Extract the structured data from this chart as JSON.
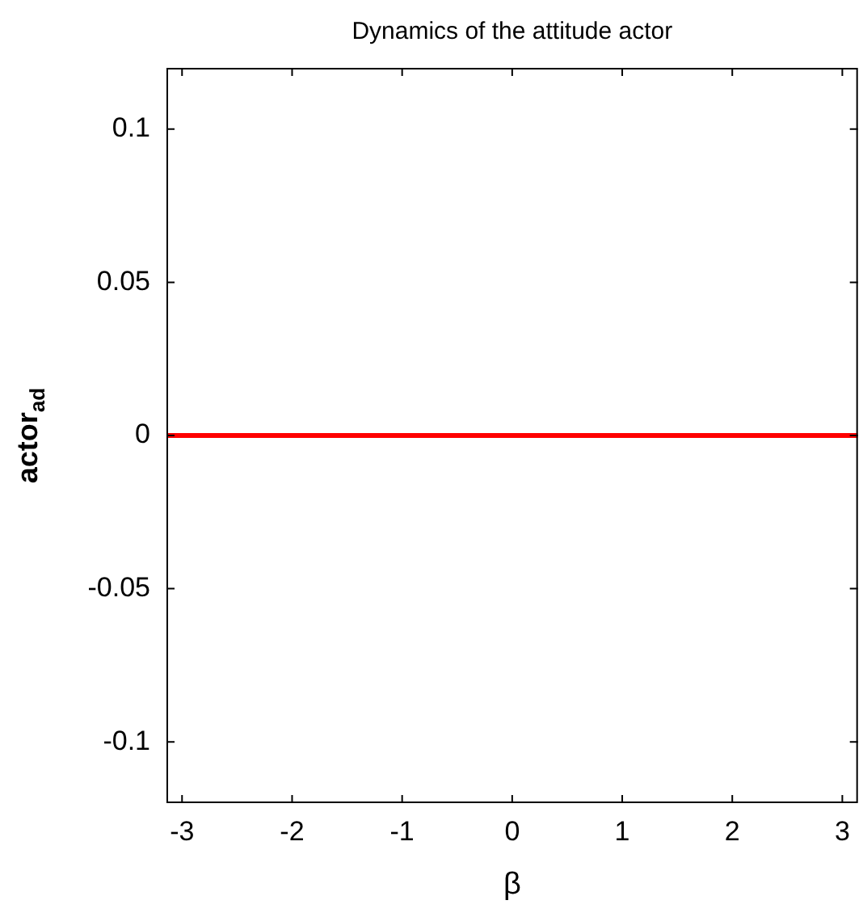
{
  "chart_data": {
    "type": "line",
    "title": "Dynamics of the attitude actor",
    "xlabel": "β",
    "ylabel": "actor$_{ad}$",
    "xlim": [
      -3.1416,
      3.1416
    ],
    "xticks": [
      -3,
      -2,
      -1,
      0,
      1,
      2,
      3
    ],
    "ylim": [
      -0.12,
      0.12
    ],
    "yticks": [
      -0.1,
      -0.05,
      0,
      0.05,
      0.1
    ],
    "grid": false,
    "legend": false,
    "marker": "none",
    "line_style": "solid",
    "series": [
      {
        "color": "#ff0000",
        "x": [
          -3.1416,
          3.1416
        ],
        "values": [
          0,
          0
        ]
      }
    ]
  }
}
